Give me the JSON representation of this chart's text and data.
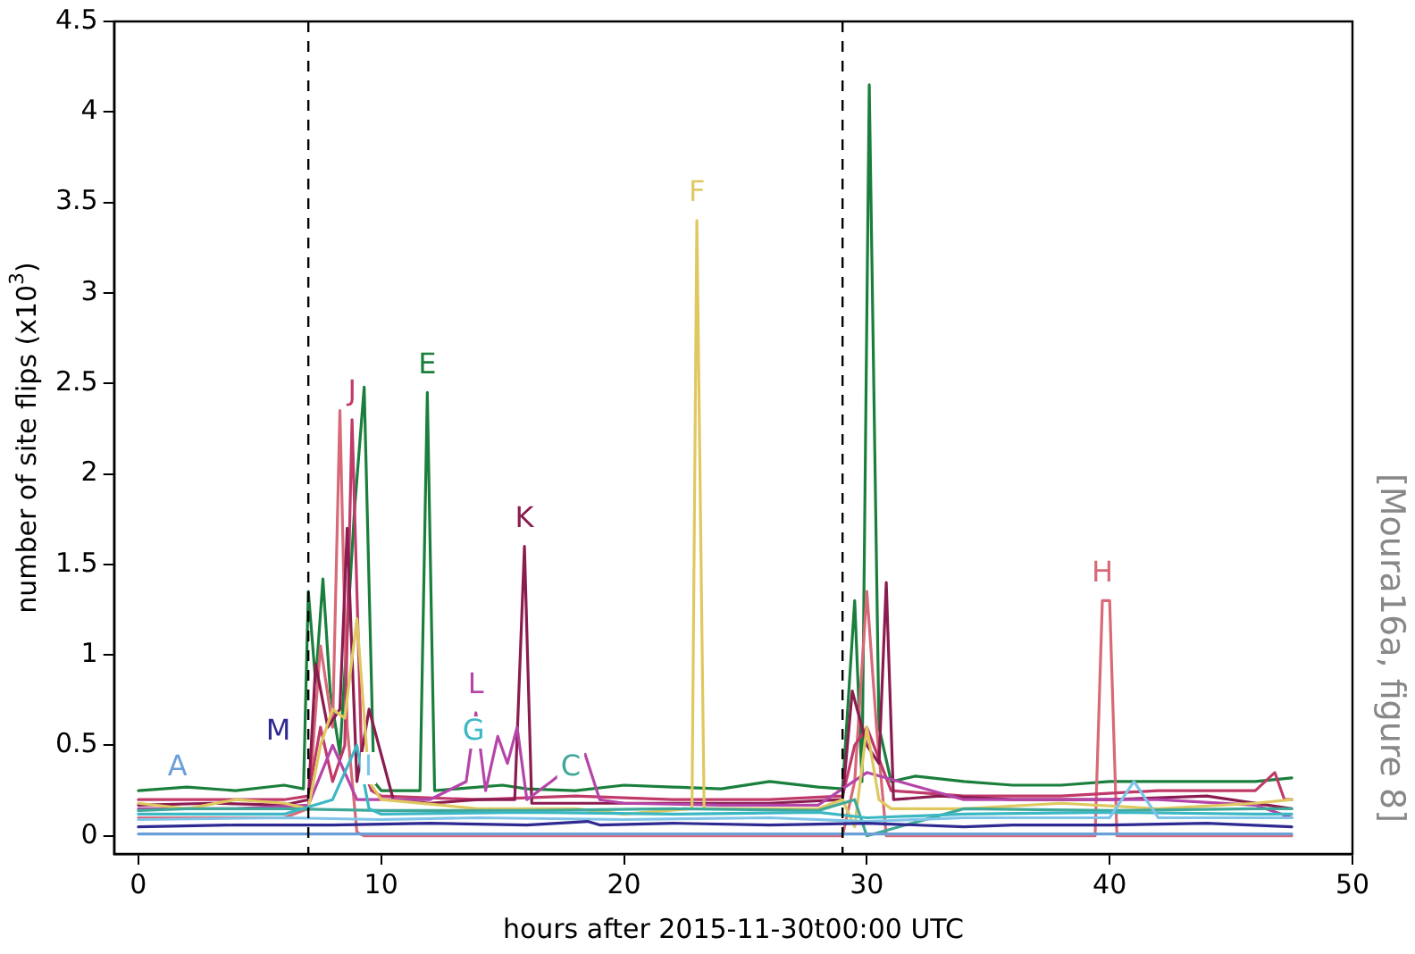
{
  "chart_data": {
    "type": "line",
    "xlabel": "hours after 2015-11-30t00:00 UTC",
    "ylabel": "number of site flips (x10$^{3}$)",
    "annotations": [
      "[Moura16a, figure 8]"
    ],
    "xlim": [
      -1,
      50
    ],
    "xticks": [
      0,
      10,
      20,
      30,
      40,
      50
    ],
    "ylim": [
      -0.1,
      4.5
    ],
    "yticks": [
      0,
      0.5,
      1,
      1.5,
      2,
      2.5,
      3,
      3.5,
      4,
      4.5
    ],
    "grid": false,
    "legend": false,
    "marker": "none",
    "line_style": "solid",
    "ref_lines": [
      {
        "axis": "x",
        "value": 7,
        "color": "#000000",
        "line_style": "dashed"
      },
      {
        "axis": "x",
        "value": 29,
        "color": "#000000",
        "line_style": "dashed"
      }
    ],
    "series": [
      {
        "name": "A",
        "color": "#6a9fd8",
        "x": [
          0,
          6,
          12,
          18,
          24,
          30,
          36,
          42,
          47.5
        ],
        "values": [
          0.01,
          0.01,
          0.01,
          0.01,
          0.01,
          0.01,
          0.01,
          0.01,
          0.01
        ]
      },
      {
        "name": "M",
        "color": "#2e2a92",
        "x": [
          0,
          4,
          8,
          12,
          16,
          18.5,
          19,
          22,
          26,
          30,
          34,
          36,
          40,
          44,
          47.5
        ],
        "values": [
          0.05,
          0.06,
          0.06,
          0.07,
          0.06,
          0.08,
          0.06,
          0.07,
          0.06,
          0.07,
          0.05,
          0.06,
          0.06,
          0.07,
          0.05
        ]
      },
      {
        "name": "I",
        "color": "#7fc4e8",
        "x": [
          0,
          6,
          10,
          14,
          20,
          26,
          30,
          34,
          40,
          41,
          42,
          46,
          47.5
        ],
        "values": [
          0.09,
          0.1,
          0.09,
          0.1,
          0.09,
          0.1,
          0.08,
          0.1,
          0.1,
          0.3,
          0.1,
          0.1,
          0.1
        ]
      },
      {
        "name": "G",
        "color": "#3cb8c4",
        "x": [
          0,
          6,
          8,
          9,
          9.5,
          10,
          16,
          22,
          28,
          30,
          34,
          40,
          46,
          47.5
        ],
        "values": [
          0.12,
          0.12,
          0.2,
          0.5,
          0.15,
          0.12,
          0.13,
          0.12,
          0.13,
          0.1,
          0.12,
          0.13,
          0.12,
          0.12
        ]
      },
      {
        "name": "C",
        "color": "#40a898",
        "x": [
          0,
          2,
          6,
          10,
          16,
          22,
          28,
          29.5,
          30,
          34,
          40,
          46,
          47.5
        ],
        "values": [
          0.14,
          0.15,
          0.15,
          0.14,
          0.14,
          0.15,
          0.14,
          0.2,
          0.0,
          0.15,
          0.14,
          0.15,
          0.15
        ]
      },
      {
        "name": "F",
        "color": "#e0c860",
        "x": [
          0,
          2,
          4,
          6,
          7,
          7.5,
          8,
          8.5,
          9,
          9.5,
          10,
          14,
          18,
          20,
          22.8,
          23,
          23.3,
          26,
          28,
          29,
          29.5,
          30,
          30.5,
          31,
          34,
          38,
          42,
          46,
          47.5
        ],
        "values": [
          0.18,
          0.15,
          0.2,
          0.18,
          0.15,
          0.5,
          0.7,
          0.65,
          1.2,
          0.3,
          0.2,
          0.15,
          0.15,
          0.12,
          0.15,
          3.4,
          0.15,
          0.15,
          0.15,
          0.2,
          0.05,
          0.6,
          0.2,
          0.15,
          0.15,
          0.18,
          0.15,
          0.18,
          0.2
        ]
      },
      {
        "name": "L",
        "color": "#b545a8",
        "x": [
          0,
          4,
          7,
          8,
          9,
          10,
          12,
          13.5,
          13.9,
          14.3,
          14.8,
          15.2,
          15.6,
          16,
          17,
          18.4,
          19,
          20,
          24,
          28,
          30,
          34,
          38,
          42,
          46,
          47.5
        ],
        "values": [
          0.15,
          0.15,
          0.17,
          0.5,
          0.2,
          0.2,
          0.2,
          0.3,
          0.68,
          0.25,
          0.55,
          0.4,
          0.6,
          0.2,
          0.3,
          0.45,
          0.2,
          0.18,
          0.17,
          0.17,
          0.35,
          0.2,
          0.2,
          0.2,
          0.17,
          0.1
        ]
      },
      {
        "name": "K",
        "color": "#8b1c50",
        "x": [
          0,
          3,
          6,
          7,
          7.3,
          7.8,
          8.3,
          8.6,
          9,
          9.5,
          10.5,
          12,
          14,
          15.5,
          15.9,
          16.2,
          18,
          22,
          26,
          29,
          29.4,
          30,
          30.5,
          30.8,
          31.1,
          33,
          36,
          40,
          44,
          47.5
        ],
        "values": [
          0.17,
          0.18,
          0.17,
          0.2,
          0.95,
          0.6,
          0.7,
          1.7,
          0.3,
          0.7,
          0.2,
          0.18,
          0.2,
          0.2,
          1.6,
          0.18,
          0.18,
          0.18,
          0.18,
          0.2,
          0.8,
          0.5,
          0.4,
          1.4,
          0.2,
          0.22,
          0.2,
          0.2,
          0.22,
          0.15
        ]
      },
      {
        "name": "J",
        "color": "#c03a6a",
        "x": [
          0,
          3,
          6,
          7,
          7.5,
          8,
          8.5,
          8.8,
          9.2,
          9.6,
          10,
          14,
          18,
          22,
          26,
          29,
          29.5,
          30,
          31,
          34,
          38,
          42,
          46,
          46.8,
          47.2,
          47.5
        ],
        "values": [
          0.2,
          0.2,
          0.2,
          0.22,
          0.6,
          0.3,
          0.5,
          2.3,
          0.4,
          0.25,
          0.22,
          0.2,
          0.22,
          0.2,
          0.2,
          0.22,
          0.5,
          0.6,
          0.25,
          0.22,
          0.22,
          0.25,
          0.25,
          0.35,
          0.2,
          0.2
        ]
      },
      {
        "name": "H",
        "color": "#d86a78",
        "x": [
          0,
          3,
          6,
          7,
          7.5,
          8,
          8.3,
          8.6,
          9,
          9.3,
          15,
          20,
          25,
          29,
          29.5,
          30,
          30.4,
          30.8,
          35,
          39.4,
          39.7,
          40,
          40.3,
          44,
          47.5
        ],
        "values": [
          0.1,
          0.1,
          0.1,
          0.15,
          1.05,
          0.6,
          2.35,
          0.6,
          0.02,
          0,
          0,
          0,
          0,
          0,
          0.3,
          1.35,
          0.6,
          0,
          0,
          0,
          1.3,
          1.3,
          0,
          0,
          0
        ]
      },
      {
        "name": "E",
        "color": "#1a7f3c",
        "x": [
          0,
          2,
          4,
          6,
          6.8,
          7,
          7.3,
          7.6,
          7.9,
          8.3,
          8.9,
          9.3,
          9.7,
          10,
          11.6,
          11.9,
          12.2,
          14,
          15,
          16,
          18,
          20,
          22,
          24,
          26,
          28,
          29,
          29.5,
          29.8,
          30.1,
          30.5,
          31,
          32,
          34,
          36,
          38,
          40,
          42,
          44,
          46,
          47.5
        ],
        "values": [
          0.25,
          0.27,
          0.25,
          0.28,
          0.26,
          1.35,
          0.85,
          1.42,
          0.8,
          0.45,
          1.8,
          2.48,
          0.3,
          0.25,
          0.25,
          2.45,
          0.25,
          0.27,
          0.28,
          0.26,
          0.25,
          0.28,
          0.27,
          0.26,
          0.3,
          0.27,
          0.26,
          1.3,
          0.3,
          4.15,
          0.6,
          0.3,
          0.33,
          0.3,
          0.28,
          0.28,
          0.3,
          0.3,
          0.3,
          0.3,
          0.32
        ]
      }
    ]
  }
}
